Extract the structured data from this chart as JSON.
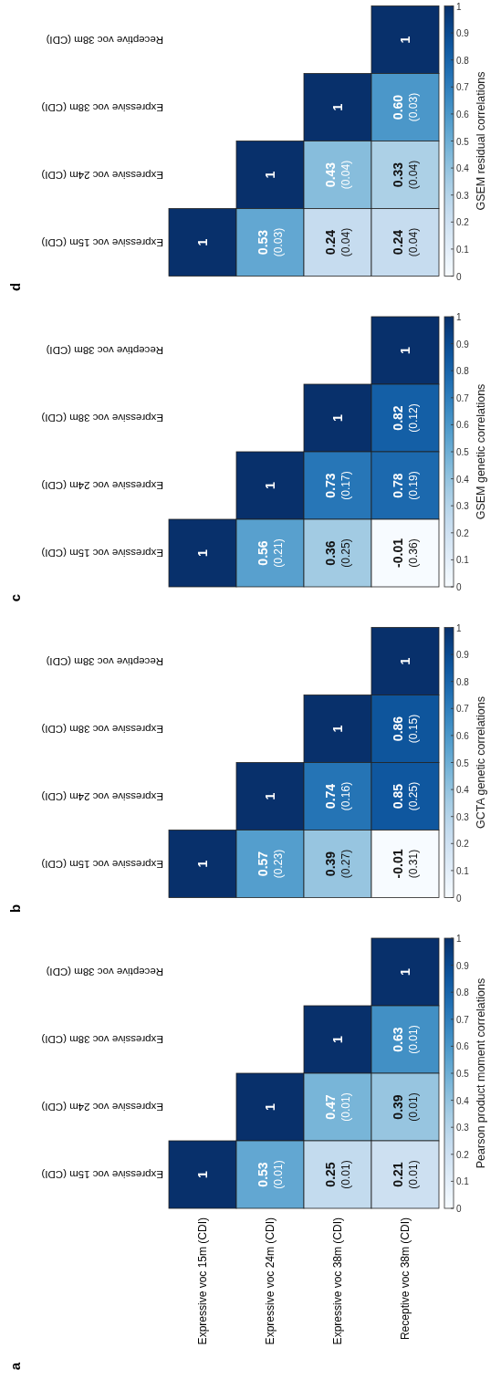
{
  "chart_data": [
    {
      "type": "heatmap",
      "title": "a",
      "clabel": "Pearson product moment correlations",
      "categories": [
        "Expressive voc 15m (CDI)",
        "Expressive voc 24m (CDI)",
        "Expressive voc 38m (CDI)",
        "Receptive voc 38m (CDI)"
      ],
      "y_categories": [
        "Receptive voc 38m (CDI)",
        "Expressive voc 38m (CDI)",
        "Expressive voc 24m (CDI)",
        "Expressive voc 15m (CDI)"
      ],
      "cells": [
        [
          null,
          null,
          null,
          1
        ],
        [
          null,
          null,
          1,
          0.63
        ],
        [
          null,
          1,
          0.47,
          0.39
        ],
        [
          1,
          0.53,
          0.25,
          0.21
        ]
      ],
      "cell_labels": [
        [
          null,
          null,
          null,
          "1"
        ],
        [
          null,
          null,
          "1",
          "0.63\n(0.01)"
        ],
        [
          null,
          "1",
          "0.47\n(0.01)",
          "0.39\n(0.01)"
        ],
        [
          "1",
          "0.53\n(0.01)",
          "0.25\n(0.01)",
          "0.21\n(0.01)"
        ]
      ],
      "clim": [
        0,
        1
      ],
      "cticks": [
        0,
        0.1,
        0.2,
        0.3,
        0.4,
        0.5,
        0.6,
        0.7,
        0.8,
        0.9,
        1
      ]
    },
    {
      "type": "heatmap",
      "title": "b",
      "clabel": "GCTA genetic correlations",
      "tick_labels": "y",
      "categories": [
        null,
        null,
        null,
        null
      ],
      "y_categories": [
        "Receptive voc 38m (CDI)",
        "Expressive voc 38m (CDI)",
        "Expressive voc 24m (CDI)",
        "Expressive voc 15m (CDI)"
      ],
      "cells": [
        [
          null,
          null,
          null,
          1
        ],
        [
          null,
          null,
          1,
          0.86
        ],
        [
          null,
          1,
          0.74,
          0.85
        ],
        [
          1,
          0.57,
          0.39,
          -0.01
        ]
      ],
      "cell_labels": [
        [
          null,
          null,
          null,
          "1"
        ],
        [
          null,
          null,
          "1",
          "0.86\n(0.15)"
        ],
        [
          null,
          "1",
          "0.74\n(0.16)",
          "0.85\n(0.25)"
        ],
        [
          "1",
          "0.57\n(0.23)",
          "0.39\n(0.27)",
          "-0.01\n(0.31)"
        ]
      ],
      "clim": [
        0,
        1
      ],
      "cticks": [
        0,
        0.1,
        0.2,
        0.3,
        0.4,
        0.5,
        0.6,
        0.7,
        0.8,
        0.9,
        1
      ]
    },
    {
      "type": "heatmap",
      "title": "c",
      "clabel": "GSEM genetic correlations",
      "tick_labels": "y",
      "categories": [
        null,
        null,
        null,
        null
      ],
      "y_categories": [
        "Receptive voc 38m (CDI)",
        "Expressive voc 38m (CDI)",
        "Expressive voc 24m (CDI)",
        "Expressive voc 15m (CDI)"
      ],
      "cells": [
        [
          null,
          null,
          null,
          1
        ],
        [
          null,
          null,
          1,
          0.82
        ],
        [
          null,
          1,
          0.73,
          0.78
        ],
        [
          1,
          0.56,
          0.36,
          -0.01
        ]
      ],
      "cell_labels": [
        [
          null,
          null,
          null,
          "1"
        ],
        [
          null,
          null,
          "1",
          "0.82\n(0.12)"
        ],
        [
          null,
          "1",
          "0.73\n(0.17)",
          "0.78\n(0.19)"
        ],
        [
          "1",
          "0.56\n(0.21)",
          "0.36\n(0.25)",
          "-0.01\n(0.36)"
        ]
      ],
      "clim": [
        0,
        1
      ],
      "cticks": [
        0,
        0.1,
        0.2,
        0.3,
        0.4,
        0.5,
        0.6,
        0.7,
        0.8,
        0.9,
        1
      ]
    },
    {
      "type": "heatmap",
      "title": "d",
      "clabel": "GSEM residual correlations",
      "tick_labels": "y",
      "categories": [
        null,
        null,
        null,
        null
      ],
      "y_categories": [
        "Receptive voc 38m (CDI)",
        "Expressive voc 38m (CDI)",
        "Expressive voc 24m (CDI)",
        "Expressive voc 15m (CDI)"
      ],
      "cells": [
        [
          null,
          null,
          null,
          1
        ],
        [
          null,
          null,
          1,
          0.6
        ],
        [
          null,
          1,
          0.43,
          0.33
        ],
        [
          1,
          0.53,
          0.24,
          0.24
        ]
      ],
      "cell_labels": [
        [
          null,
          null,
          null,
          "1"
        ],
        [
          null,
          null,
          "1",
          "0.60\n(0.03)"
        ],
        [
          null,
          "1",
          "0.43\n(0.04)",
          "0.33\n(0.04)"
        ],
        [
          "1",
          "0.53\n(0.03)",
          "0.24\n(0.04)",
          "0.24\n(0.04)"
        ]
      ],
      "clim": [
        0,
        1
      ],
      "cticks": [
        0,
        0.1,
        0.2,
        0.3,
        0.4,
        0.5,
        0.6,
        0.7,
        0.8,
        0.9,
        1
      ]
    }
  ]
}
